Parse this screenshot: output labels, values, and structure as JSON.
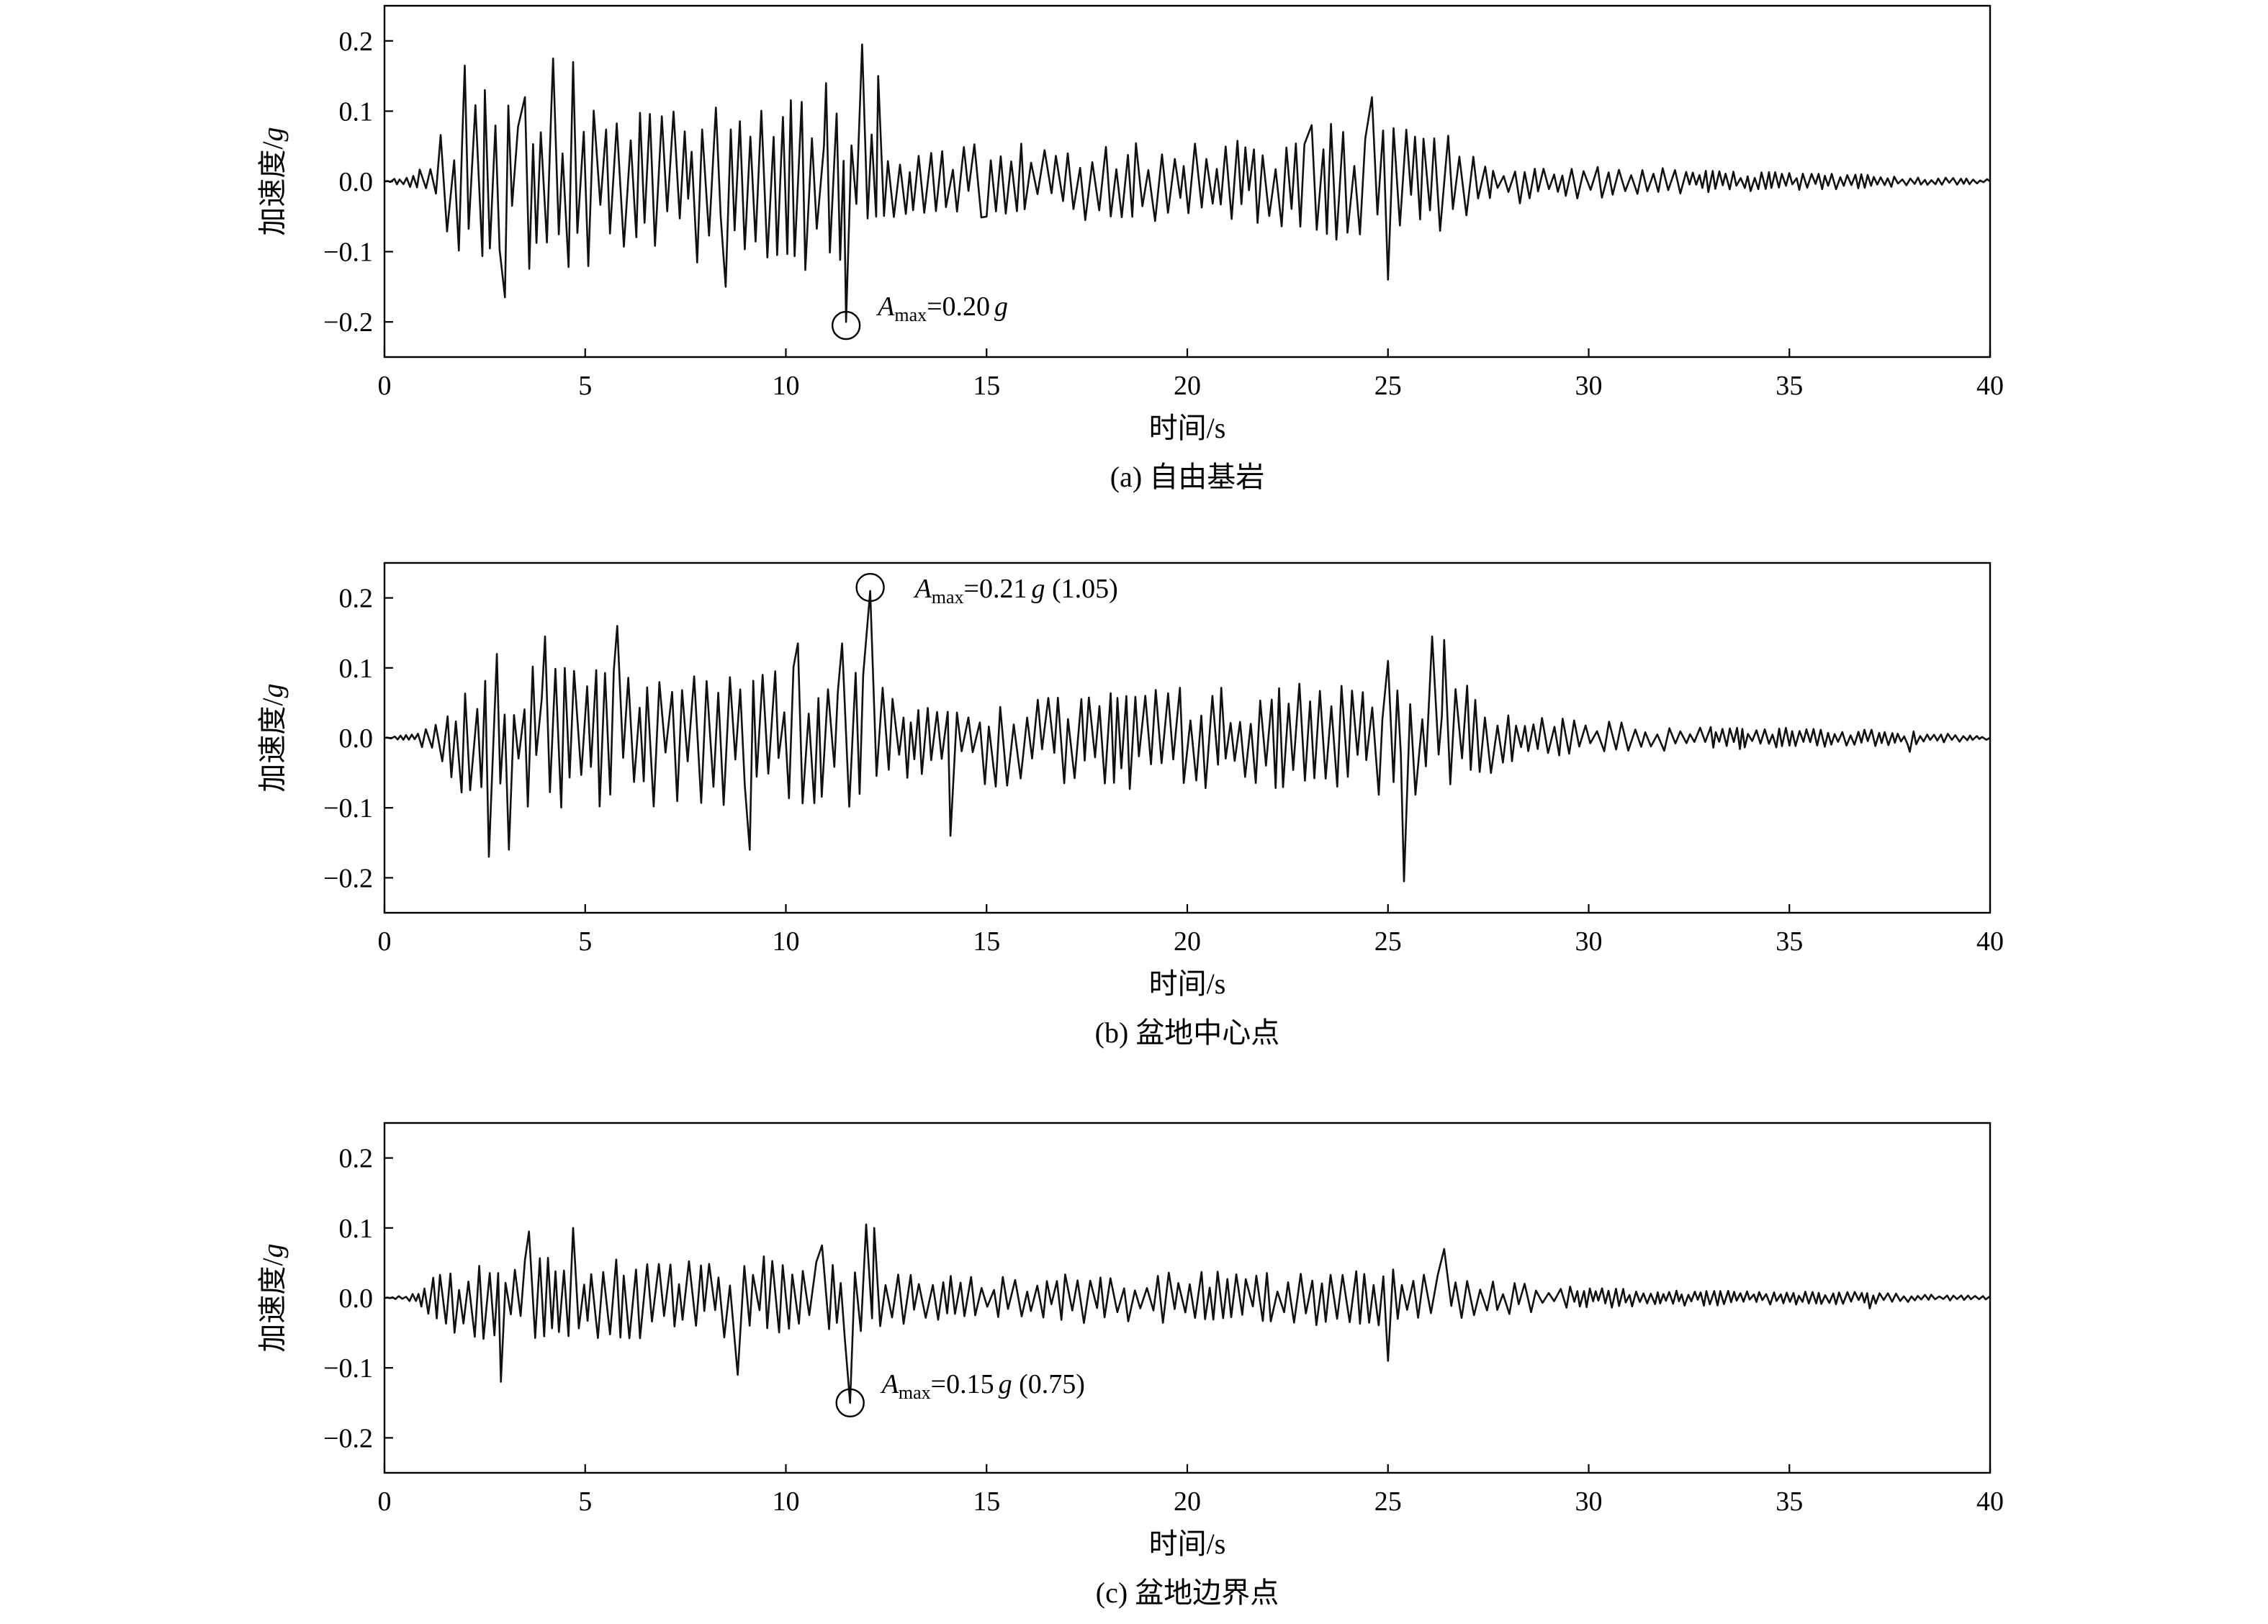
{
  "chart_data": [
    {
      "type": "line",
      "caption": "(a) 自由基岩",
      "xlabel": "时间/s",
      "ylabel": "加速度/",
      "ylabel_unit": "g",
      "xlim": [
        0,
        40
      ],
      "ylim": [
        -0.25,
        0.25
      ],
      "xticks": [
        "0",
        "5",
        "10",
        "15",
        "20",
        "25",
        "30",
        "35",
        "40"
      ],
      "yticks": [
        "0.2",
        "0.1",
        "0.0",
        "−0.1",
        "−0.2"
      ],
      "annotation": {
        "symbol": "A",
        "sub": "max",
        "value": "=0.20",
        "unit": "g",
        "ratio": "",
        "t": 11.5,
        "a": -0.205
      },
      "series": [
        {
          "seed": 11,
          "total": 0.85,
          "peaks": [
            [
              2.0,
              0.165
            ],
            [
              2.5,
              0.13
            ],
            [
              3.0,
              -0.165
            ],
            [
              3.5,
              0.12
            ],
            [
              4.2,
              0.175
            ],
            [
              4.7,
              0.17
            ],
            [
              8.5,
              -0.15
            ],
            [
              11.0,
              0.14
            ],
            [
              11.5,
              -0.2
            ],
            [
              11.9,
              0.195
            ],
            [
              12.3,
              0.15
            ],
            [
              15.0,
              -0.05
            ],
            [
              23.1,
              0.08
            ],
            [
              24.6,
              0.12
            ],
            [
              25.0,
              -0.14
            ],
            [
              26.5,
              0.065
            ]
          ],
          "env": [
            [
              0,
              0
            ],
            [
              0.8,
              0.015
            ],
            [
              1.3,
              0.07
            ],
            [
              2.0,
              0.15
            ],
            [
              7.0,
              0.14
            ],
            [
              10.5,
              0.15
            ],
            [
              12.3,
              0.15
            ],
            [
              12.5,
              0.06
            ],
            [
              22.0,
              0.07
            ],
            [
              23.0,
              0.1
            ],
            [
              26.0,
              0.1
            ],
            [
              27.5,
              0.04
            ],
            [
              30.0,
              0.03
            ],
            [
              33.0,
              0.018
            ],
            [
              37.0,
              0.012
            ],
            [
              38.0,
              0.008
            ],
            [
              40.0,
              0.004
            ]
          ]
        }
      ]
    },
    {
      "type": "line",
      "caption": "(b) 盆地中心点",
      "xlabel": "时间/s",
      "ylabel": "加速度/",
      "ylabel_unit": "g",
      "xlim": [
        0,
        40
      ],
      "ylim": [
        -0.25,
        0.25
      ],
      "xticks": [
        "0",
        "5",
        "10",
        "15",
        "20",
        "25",
        "30",
        "35",
        "40"
      ],
      "yticks": [
        "0.2",
        "0.1",
        "0.0",
        "−0.1",
        "−0.2"
      ],
      "annotation": {
        "symbol": "A",
        "sub": "max",
        "value": "=0.21",
        "unit": "g",
        "ratio": " (1.05)",
        "t": 12.1,
        "a": 0.215
      },
      "series": [
        {
          "seed": 23,
          "total": 0.85,
          "peaks": [
            [
              2.6,
              -0.17
            ],
            [
              2.8,
              0.12
            ],
            [
              3.1,
              -0.16
            ],
            [
              4.0,
              0.145
            ],
            [
              5.8,
              0.16
            ],
            [
              9.1,
              -0.16
            ],
            [
              10.3,
              0.135
            ],
            [
              11.4,
              0.135
            ],
            [
              12.1,
              0.21
            ],
            [
              14.1,
              -0.14
            ],
            [
              25.0,
              0.11
            ],
            [
              25.4,
              -0.205
            ],
            [
              26.1,
              0.145
            ],
            [
              26.4,
              0.14
            ],
            [
              38.0,
              -0.02
            ]
          ],
          "env": [
            [
              0,
              0
            ],
            [
              0.8,
              0.008
            ],
            [
              1.3,
              0.04
            ],
            [
              2.2,
              0.12
            ],
            [
              9.5,
              0.12
            ],
            [
              12.5,
              0.12
            ],
            [
              13.0,
              0.08
            ],
            [
              22.0,
              0.09
            ],
            [
              24.0,
              0.1
            ],
            [
              27.0,
              0.1
            ],
            [
              28.0,
              0.04
            ],
            [
              30.0,
              0.03
            ],
            [
              33.0,
              0.02
            ],
            [
              37.0,
              0.014
            ],
            [
              38.0,
              0.012
            ],
            [
              40.0,
              0.003
            ]
          ]
        }
      ]
    },
    {
      "type": "line",
      "caption": "(c) 盆地边界点",
      "xlabel": "时间/s",
      "ylabel": "加速度/",
      "ylabel_unit": "g",
      "xlim": [
        0,
        40
      ],
      "ylim": [
        -0.25,
        0.25
      ],
      "xticks": [
        "0",
        "5",
        "10",
        "15",
        "20",
        "25",
        "30",
        "35",
        "40"
      ],
      "yticks": [
        "0.2",
        "0.1",
        "0.0",
        "−0.1",
        "−0.2"
      ],
      "annotation": {
        "symbol": "A",
        "sub": "max",
        "value": "=0.15",
        "unit": "g",
        "ratio": " (0.75)",
        "t": 11.6,
        "a": -0.15
      },
      "series": [
        {
          "seed": 37,
          "total": 0.85,
          "peaks": [
            [
              2.9,
              -0.12
            ],
            [
              3.6,
              0.095
            ],
            [
              4.7,
              0.1
            ],
            [
              8.8,
              -0.11
            ],
            [
              10.9,
              0.075
            ],
            [
              11.6,
              -0.15
            ],
            [
              12.0,
              0.105
            ],
            [
              12.2,
              0.1
            ],
            [
              25.0,
              -0.09
            ],
            [
              26.4,
              0.07
            ],
            [
              37.0,
              -0.015
            ]
          ],
          "env": [
            [
              0,
              0
            ],
            [
              0.8,
              0.008
            ],
            [
              1.3,
              0.04
            ],
            [
              2.0,
              0.07
            ],
            [
              9.5,
              0.07
            ],
            [
              12.5,
              0.07
            ],
            [
              13.0,
              0.04
            ],
            [
              22.0,
              0.045
            ],
            [
              26.5,
              0.05
            ],
            [
              27.5,
              0.03
            ],
            [
              30.0,
              0.018
            ],
            [
              33.0,
              0.013
            ],
            [
              37.0,
              0.01
            ],
            [
              38.0,
              0.007
            ],
            [
              40.0,
              0.003
            ]
          ]
        }
      ]
    }
  ]
}
